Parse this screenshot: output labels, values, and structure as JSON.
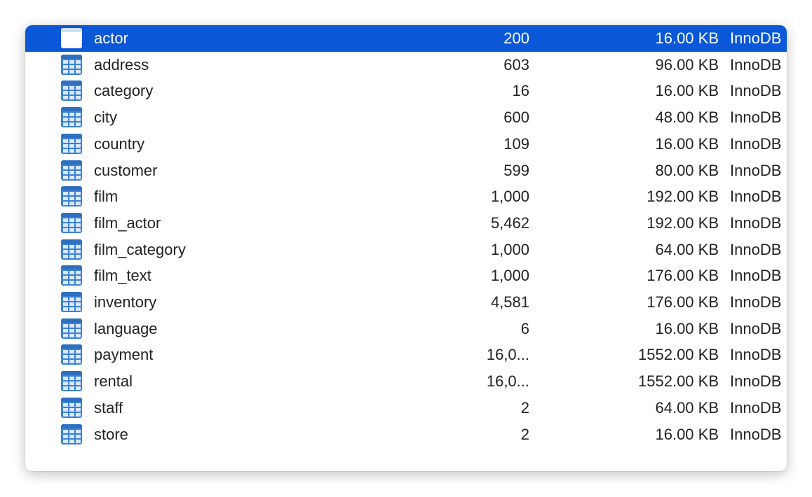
{
  "colors": {
    "selection": "#0a57d8",
    "icon": "#3b82d6"
  },
  "icon": "table-icon",
  "tables": [
    {
      "name": "actor",
      "rows": "200",
      "size": "16.00 KB",
      "engine": "InnoDB",
      "selected": true
    },
    {
      "name": "address",
      "rows": "603",
      "size": "96.00 KB",
      "engine": "InnoDB"
    },
    {
      "name": "category",
      "rows": "16",
      "size": "16.00 KB",
      "engine": "InnoDB"
    },
    {
      "name": "city",
      "rows": "600",
      "size": "48.00 KB",
      "engine": "InnoDB"
    },
    {
      "name": "country",
      "rows": "109",
      "size": "16.00 KB",
      "engine": "InnoDB"
    },
    {
      "name": "customer",
      "rows": "599",
      "size": "80.00 KB",
      "engine": "InnoDB"
    },
    {
      "name": "film",
      "rows": "1,000",
      "size": "192.00 KB",
      "engine": "InnoDB"
    },
    {
      "name": "film_actor",
      "rows": "5,462",
      "size": "192.00 KB",
      "engine": "InnoDB"
    },
    {
      "name": "film_category",
      "rows": "1,000",
      "size": "64.00 KB",
      "engine": "InnoDB"
    },
    {
      "name": "film_text",
      "rows": "1,000",
      "size": "176.00 KB",
      "engine": "InnoDB"
    },
    {
      "name": "inventory",
      "rows": "4,581",
      "size": "176.00 KB",
      "engine": "InnoDB"
    },
    {
      "name": "language",
      "rows": "6",
      "size": "16.00 KB",
      "engine": "InnoDB"
    },
    {
      "name": "payment",
      "rows": "16,0...",
      "size": "1552.00 KB",
      "engine": "InnoDB"
    },
    {
      "name": "rental",
      "rows": "16,0...",
      "size": "1552.00 KB",
      "engine": "InnoDB"
    },
    {
      "name": "staff",
      "rows": "2",
      "size": "64.00 KB",
      "engine": "InnoDB"
    },
    {
      "name": "store",
      "rows": "2",
      "size": "16.00 KB",
      "engine": "InnoDB"
    }
  ]
}
